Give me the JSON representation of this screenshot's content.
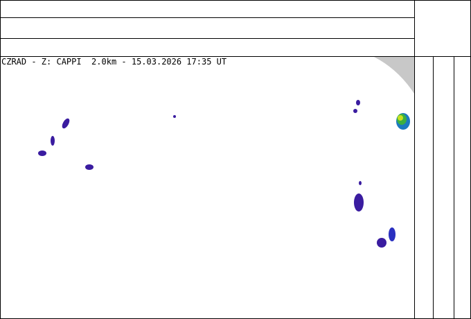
{
  "map": {
    "caption": "CZRAD - Z: CAPPI  2.0km - 15.03.2026 17:35 UT"
  }
}
